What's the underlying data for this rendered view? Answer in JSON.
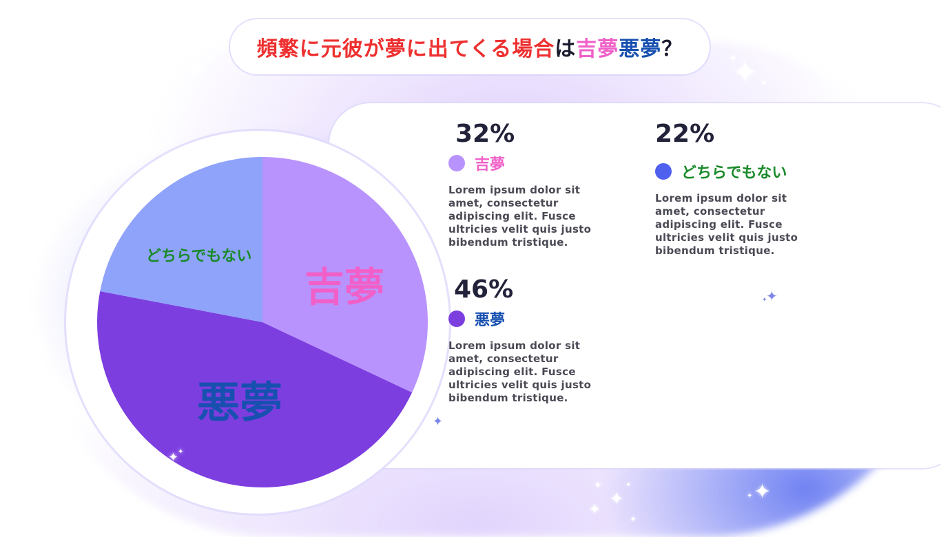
{
  "title": {
    "parts": [
      {
        "text": "頻繁に元彼が夢に出てくる場合",
        "color": "#ee3030"
      },
      {
        "text": "は",
        "color": "#1a1a2e"
      },
      {
        "text": "吉夢",
        "color": "#f060c8"
      },
      {
        "text": "悪夢",
        "color": "#1850b0"
      },
      {
        "text": "？",
        "color": "#1a1a2e"
      }
    ]
  },
  "chart_data": {
    "type": "pie",
    "slices": [
      {
        "label": "吉夢",
        "value": 32,
        "color": "#b993fd",
        "label_color": "#f060c8"
      },
      {
        "label": "悪夢",
        "value": 46,
        "color": "#7d3ee0",
        "label_color": "#1850b0"
      },
      {
        "label": "どちらでもない",
        "value": 22,
        "color": "#8fa3fb",
        "label_color": "#1a8a2a"
      }
    ]
  },
  "stats": [
    {
      "percent": "32%",
      "label": "吉夢",
      "dot_color": "#b993fd",
      "label_color": "#f060c8",
      "desc": "Lorem ipsum dolor sit amet, consectetur adipiscing elit. Fusce ultricies velit quis justo bibendum tristique."
    },
    {
      "percent": "46%",
      "label": "悪夢",
      "dot_color": "#7d3ee0",
      "label_color": "#1850b0",
      "desc": "Lorem ipsum dolor sit amet, consectetur adipiscing elit. Fusce ultricies velit quis justo bibendum tristique."
    },
    {
      "percent": "22%",
      "label": "どちらでもない",
      "dot_color": "#4f5fee",
      "label_color": "#1a8a2a",
      "desc": "Lorem ipsum dolor sit amet, consectetur adipiscing elit. Fusce ultricies velit quis justo bibendum tristique."
    }
  ],
  "decorations": {
    "sparkle_icon": "four-point-star"
  }
}
